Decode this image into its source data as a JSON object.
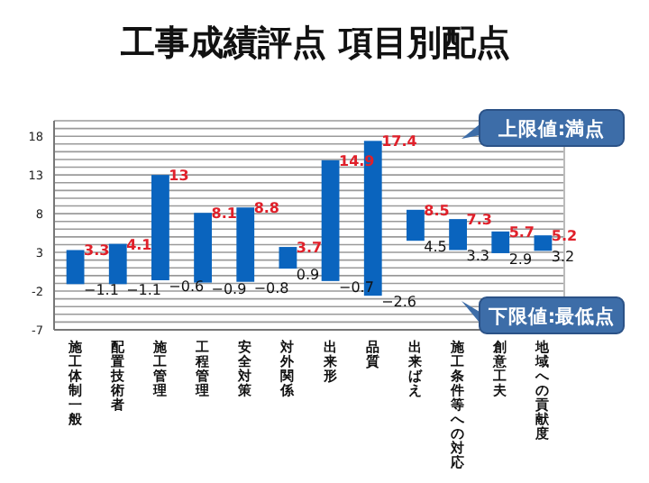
{
  "chart_data": {
    "type": "bar",
    "title": "工事成績評点 項目別配点",
    "categories": [
      "施工体制一般",
      "配置技術者",
      "施工管理",
      "工程管理",
      "安全対策",
      "対外関係",
      "出来形",
      "品質",
      "出来ばえ",
      "施工条件等への対応",
      "創意工夫",
      "地域への貢献度"
    ],
    "base": [
      -1.1,
      -1.1,
      -0.6,
      -0.9,
      -0.8,
      0.9,
      -0.7,
      -2.6,
      4.5,
      3.3,
      2.9,
      3.2
    ],
    "values": [
      4.4,
      5.2,
      13.6,
      9.0,
      9.6,
      2.8,
      15.6,
      20.0,
      4.0,
      4.0,
      2.8,
      2.0
    ],
    "color": "#0a64be",
    "ylim": [
      -7,
      20
    ],
    "yticks": [
      -7,
      {
        "value": -6,
        "label": null
      },
      {
        "value": -5,
        "label": null
      },
      {
        "value": -4,
        "label": null
      },
      {
        "value": -3,
        "label": null
      },
      -2,
      {
        "value": -1,
        "label": null
      },
      {
        "value": 0,
        "label": null
      },
      {
        "value": 1,
        "label": null
      },
      {
        "value": 2,
        "label": null
      },
      3,
      {
        "value": 4,
        "label": null
      },
      {
        "value": 5,
        "label": null
      },
      {
        "value": 6,
        "label": null
      },
      {
        "value": 7,
        "label": null
      },
      8,
      {
        "value": 9,
        "label": null
      },
      {
        "value": 10,
        "label": null
      },
      {
        "value": 11,
        "label": null
      },
      {
        "value": 12,
        "label": null
      },
      13,
      {
        "value": 14,
        "label": null
      },
      {
        "value": 15,
        "label": null
      },
      {
        "value": 16,
        "label": null
      },
      {
        "value": 17,
        "label": null
      },
      18,
      {
        "value": 19,
        "label": null
      },
      {
        "value": 20,
        "label": null
      }
    ],
    "grid": "y",
    "annotations": [
      {
        "text": "3.3",
        "x": "施工体制一般",
        "y": 3.3
      },
      {
        "text": "−1.1",
        "x": "施工体制一般",
        "y": -1.1
      },
      {
        "text": "4.1",
        "x": "配置技術者",
        "y": 4.1
      },
      {
        "text": "−1.1",
        "x": "配置技術者",
        "y": -1.1
      },
      {
        "text": "13",
        "x": "施工管理",
        "y": 13
      },
      {
        "text": "−0.6",
        "x": "施工管理",
        "y": -0.6
      },
      {
        "text": "8.1",
        "x": "工程管理",
        "y": 8.1
      },
      {
        "text": "−0.9",
        "x": "工程管理",
        "y": -0.9
      },
      {
        "text": "8.8",
        "x": "安全対策",
        "y": 8.8
      },
      {
        "text": "−0.8",
        "x": "安全対策",
        "y": -0.8
      },
      {
        "text": "3.7",
        "x": "対外関係",
        "y": 3.7
      },
      {
        "text": "0.9",
        "x": "対外関係",
        "y": 0.9
      },
      {
        "text": "14.9",
        "x": "出来形",
        "y": 14.9
      },
      {
        "text": "−0.7",
        "x": "出来形",
        "y": -0.7
      },
      {
        "text": "17.4",
        "x": "品質",
        "y": 17.4
      },
      {
        "text": "−2.6",
        "x": "品質",
        "y": -2.6
      },
      {
        "text": "8.5",
        "x": "出来ばえ",
        "y": 8.5
      },
      {
        "text": "4.5",
        "x": "出来ばえ",
        "y": 4.5
      },
      {
        "text": "7.3",
        "x": "施工条件等への対応",
        "y": 7.3
      },
      {
        "text": "3.3",
        "x": "施工条件等への対応",
        "y": 3.3
      },
      {
        "text": "5.7",
        "x": "創意工夫",
        "y": 5.7
      },
      {
        "text": "2.9",
        "x": "創意工夫",
        "y": 2.9
      },
      {
        "text": "5.2",
        "x": "地域への貢献度",
        "y": 5.2
      },
      {
        "text": "3.2",
        "x": "地域への貢献度",
        "y": 3.2
      },
      "上限値:満点",
      "下限値:最低点"
    ]
  }
}
